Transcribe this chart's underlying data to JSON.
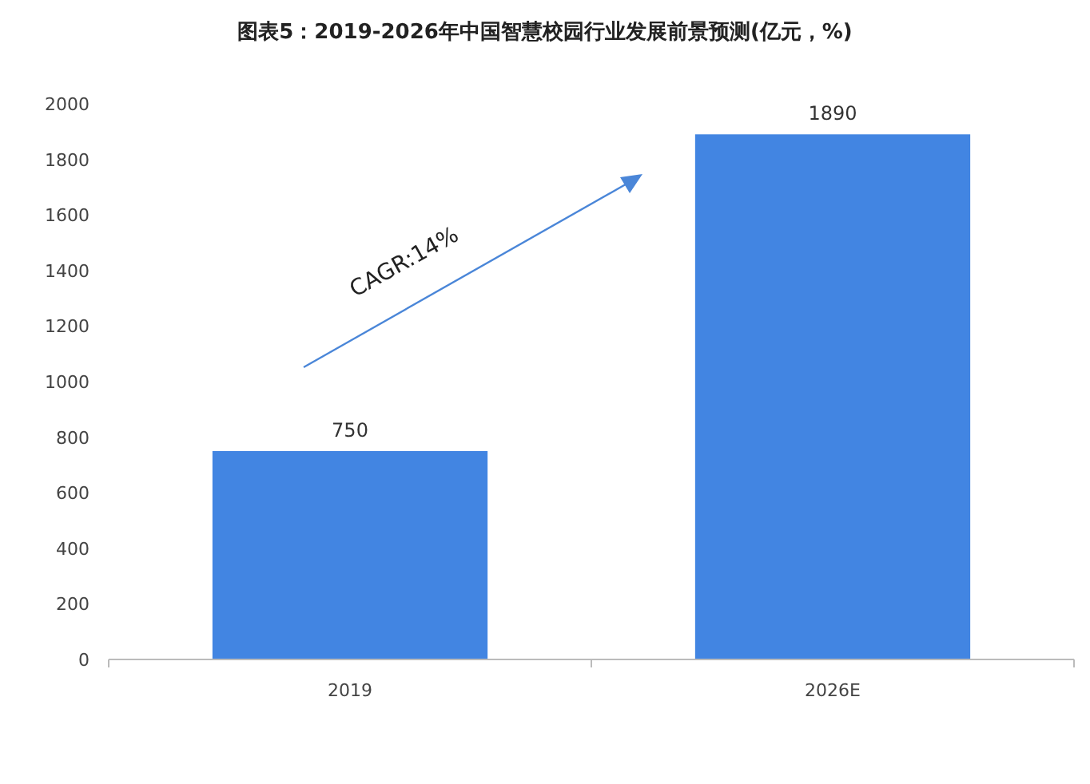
{
  "chart_data": {
    "type": "bar",
    "title": "图表5：2019-2026年中国智慧校园行业发展前景预测(亿元，%)",
    "categories": [
      "2019",
      "2026E"
    ],
    "values": [
      750,
      1890
    ],
    "color": "#4285e2",
    "ylim": [
      0,
      2000
    ],
    "yticks": [
      0,
      200,
      400,
      600,
      800,
      1000,
      1200,
      1400,
      1600,
      1800,
      2000
    ],
    "data_labels": true,
    "annotations": [
      "CAGR:14%"
    ]
  }
}
